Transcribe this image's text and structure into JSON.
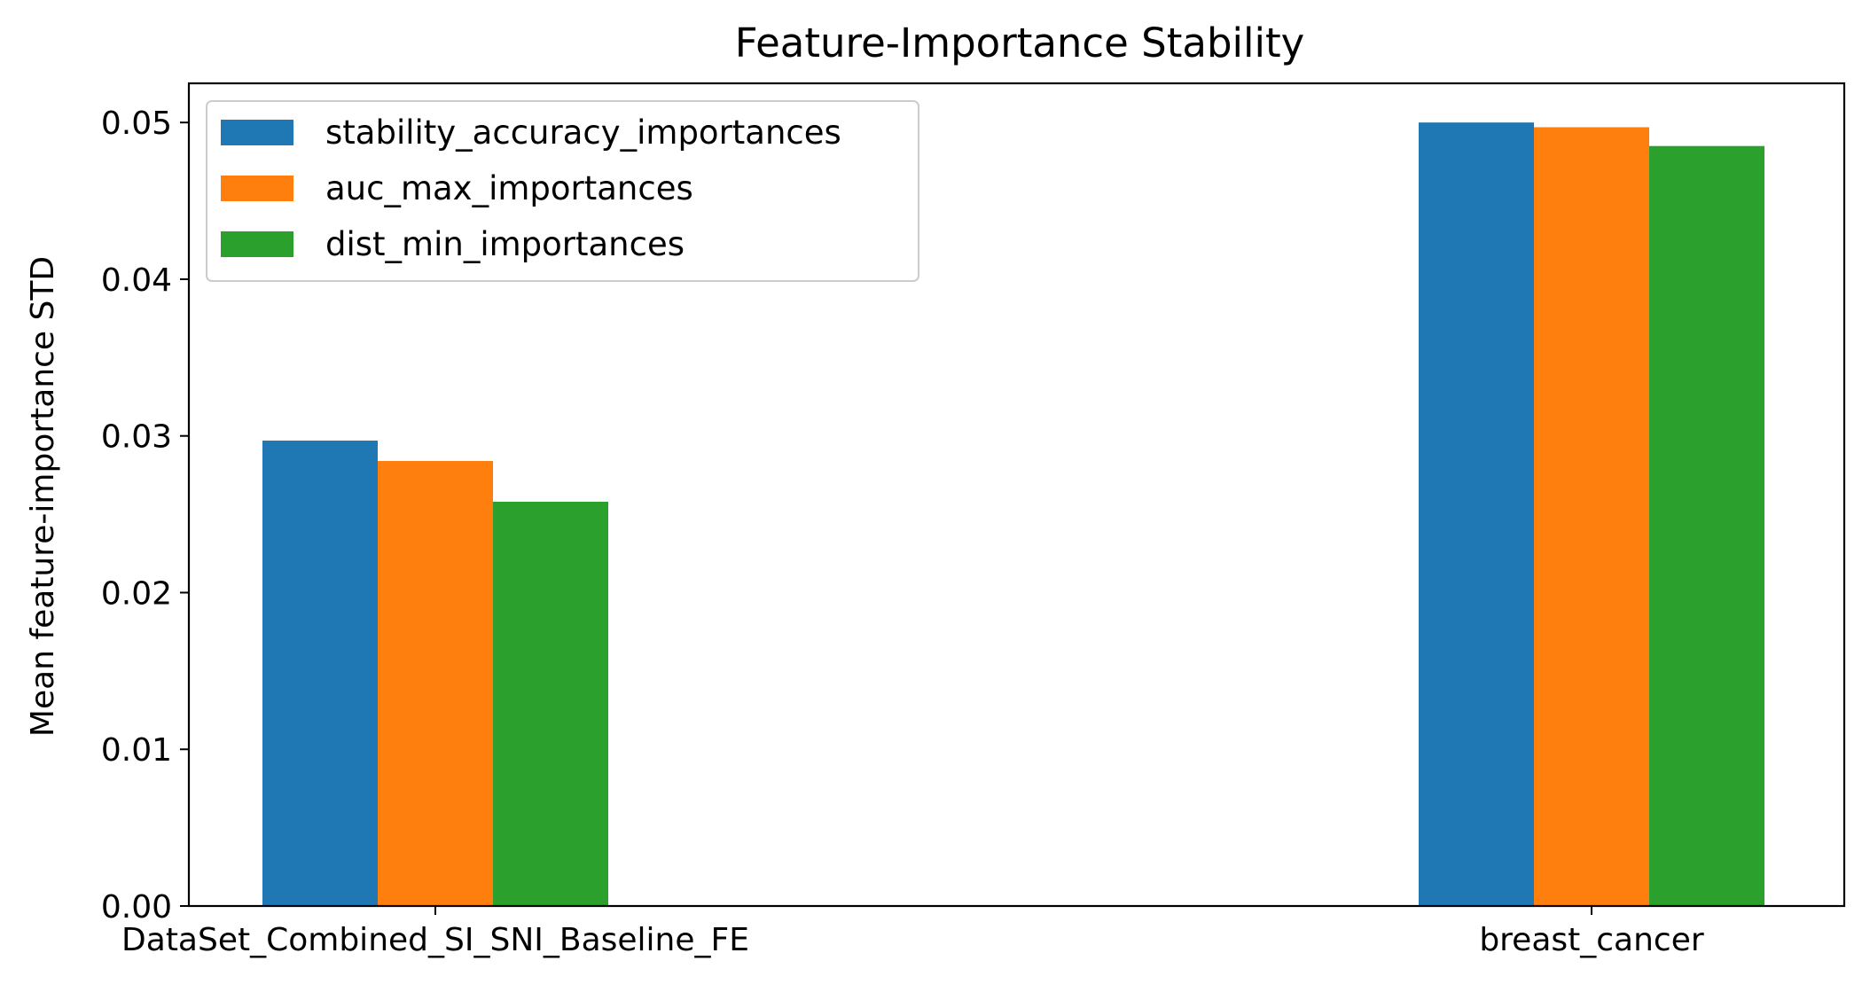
{
  "chart_data": {
    "type": "bar",
    "title": "Feature-Importance Stability",
    "xlabel": "",
    "ylabel": "Mean feature-importance STD",
    "categories": [
      "DataSet_Combined_SI_SNI_Baseline_FE",
      "breast_cancer"
    ],
    "series": [
      {
        "name": "stability_accuracy_importances",
        "color": "#1f77b4",
        "values": [
          0.0297,
          0.05
        ]
      },
      {
        "name": "auc_max_importances",
        "color": "#ff7f0e",
        "values": [
          0.0284,
          0.0497
        ]
      },
      {
        "name": "dist_min_importances",
        "color": "#2ca02c",
        "values": [
          0.0258,
          0.0485
        ]
      }
    ],
    "ylim": [
      0,
      0.0525
    ],
    "yticks": [
      "0.00",
      "0.01",
      "0.02",
      "0.03",
      "0.04",
      "0.05"
    ],
    "legend_position": "top-left",
    "grid": false
  }
}
